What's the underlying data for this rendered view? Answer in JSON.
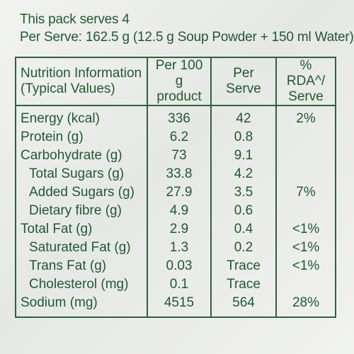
{
  "pack_serves": "This pack serves 4",
  "per_serve": "Per Serve: 162.5 g (12.5 g Soup Powder + 150 ml Water)",
  "table": {
    "headers": {
      "nutrient_line1": "Nutrition Information",
      "nutrient_line2": "(Typical Values)",
      "per100_line1": "Per 100 g",
      "per100_line2": "product",
      "per_serve": "Per Serve",
      "rda_line1": "% RDA^/",
      "rda_line2": "Serve"
    },
    "rows": [
      {
        "name": "Energy (kcal)",
        "per100": "336",
        "serve": "42",
        "rda": "2%"
      },
      {
        "name": "Protein (g)",
        "per100": "6.2",
        "serve": "0.8",
        "rda": ""
      },
      {
        "name": "Carbohydrate (g)",
        "per100": "73",
        "serve": "9.1",
        "rda": ""
      },
      {
        "name": "Total Sugars (g)",
        "per100": "33.8",
        "serve": "4.2",
        "rda": ""
      },
      {
        "name": "Added Sugars (g)",
        "per100": "27.9",
        "serve": "3.5",
        "rda": "7%"
      },
      {
        "name": "Dietary fibre (g)",
        "per100": "4.9",
        "serve": "0.6",
        "rda": ""
      },
      {
        "name": "Total Fat (g)",
        "per100": "2.9",
        "serve": "0.4",
        "rda": "<1%"
      },
      {
        "name": "Saturated Fat (g)",
        "per100": "1.3",
        "serve": "0.2",
        "rda": "<1%"
      },
      {
        "name": "Trans Fat (g)",
        "per100": "0.03",
        "serve": "Trace",
        "rda": "<1%"
      },
      {
        "name": "Cholesterol (mg)",
        "per100": "0.1",
        "serve": "Trace",
        "rda": ""
      },
      {
        "name": "Sodium (mg)",
        "per100": "4515",
        "serve": "564",
        "rda": "28%"
      }
    ]
  },
  "colors": {
    "text": "#1f5a32",
    "border": "#2b6438",
    "background": "#eceeec"
  }
}
